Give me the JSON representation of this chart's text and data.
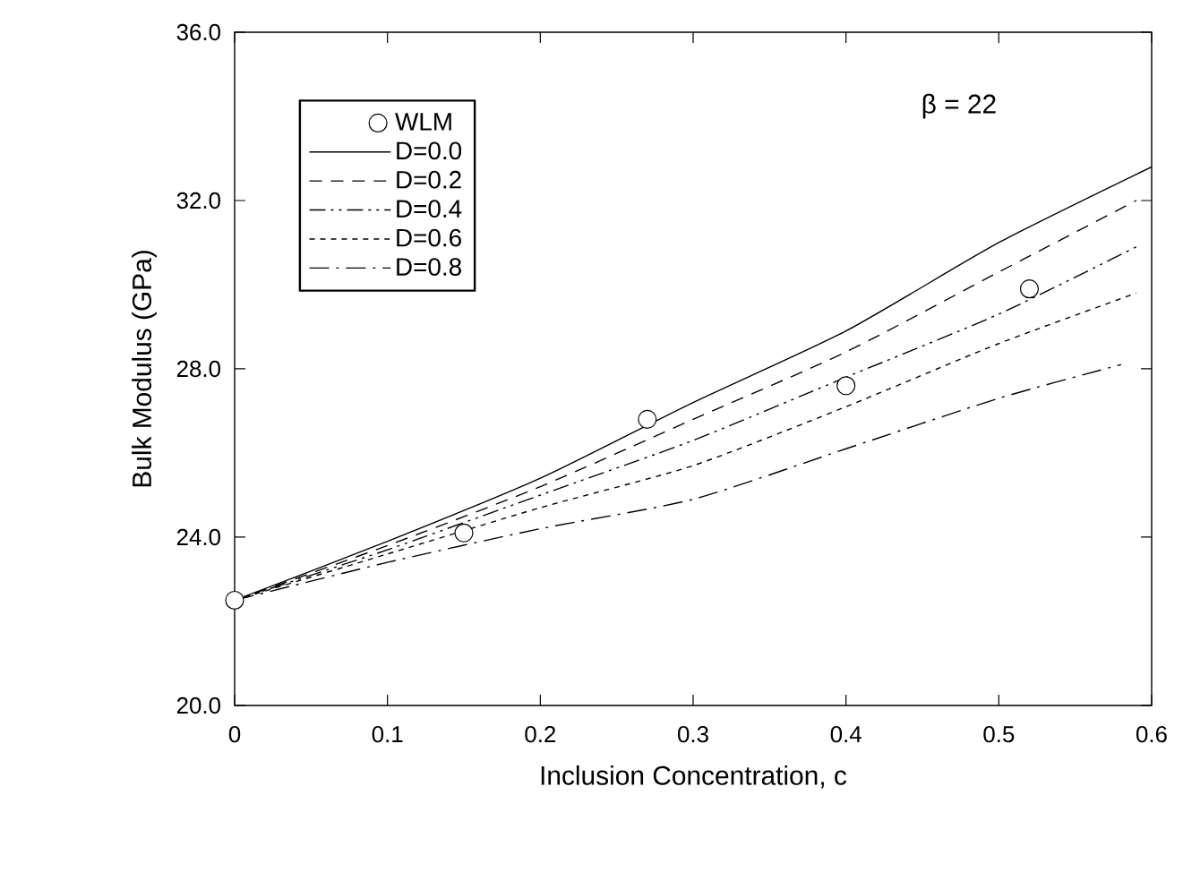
{
  "chart_data": {
    "type": "line",
    "xlabel": "Inclusion Concentration, c",
    "ylabel": "Bulk Modulus (GPa)",
    "annotations": [
      "β = 22"
    ],
    "xlim": [
      0,
      0.6
    ],
    "ylim": [
      20,
      36
    ],
    "xticks": [
      0,
      0.1,
      0.2,
      0.3,
      0.4,
      0.5,
      0.6
    ],
    "yticks": [
      {
        "value": 20,
        "label": "20.0"
      },
      {
        "value": 24,
        "label": "24.0"
      },
      {
        "value": 28,
        "label": "28.0"
      },
      {
        "value": 32,
        "label": "32.0"
      },
      {
        "value": 36,
        "label": "36.0"
      }
    ],
    "grid": false,
    "legend": "top left",
    "series": [
      {
        "name": "WLM",
        "type": "scatter",
        "marker": "circle",
        "color": "#000000",
        "x": [
          0,
          0.15,
          0.27,
          0.4,
          0.52
        ],
        "values": [
          22.5,
          24.1,
          26.8,
          27.6,
          29.9
        ]
      },
      {
        "name": "D=0.0",
        "line_style": "solid",
        "color": "#000000",
        "x": [
          0,
          0.1,
          0.2,
          0.3,
          0.4,
          0.5,
          0.6
        ],
        "values": [
          22.5,
          23.9,
          25.4,
          27.2,
          28.9,
          31.0,
          32.8
        ]
      },
      {
        "name": "D=0.2",
        "line_style": "dashed",
        "color": "#000000",
        "x": [
          0,
          0.1,
          0.2,
          0.3,
          0.4,
          0.5,
          0.59
        ],
        "values": [
          22.5,
          23.8,
          25.2,
          26.8,
          28.4,
          30.3,
          32.0
        ]
      },
      {
        "name": "D=0.4",
        "line_style": "dashed",
        "color": "#000000",
        "x": [
          0,
          0.1,
          0.2,
          0.3,
          0.4,
          0.5,
          0.59
        ],
        "values": [
          22.5,
          23.7,
          25.0,
          26.3,
          27.8,
          29.3,
          30.9
        ]
      },
      {
        "name": "D=0.6",
        "line_style": "dotted",
        "color": "#000000",
        "x": [
          0,
          0.1,
          0.2,
          0.3,
          0.4,
          0.5,
          0.59
        ],
        "values": [
          22.5,
          23.6,
          24.7,
          25.7,
          27.1,
          28.6,
          29.8
        ]
      },
      {
        "name": "D=0.8",
        "line_style": "dashed",
        "color": "#000000",
        "x": [
          0,
          0.1,
          0.2,
          0.3,
          0.4,
          0.5,
          0.58
        ],
        "values": [
          22.5,
          23.4,
          24.2,
          24.9,
          26.1,
          27.3,
          28.1
        ]
      }
    ]
  }
}
